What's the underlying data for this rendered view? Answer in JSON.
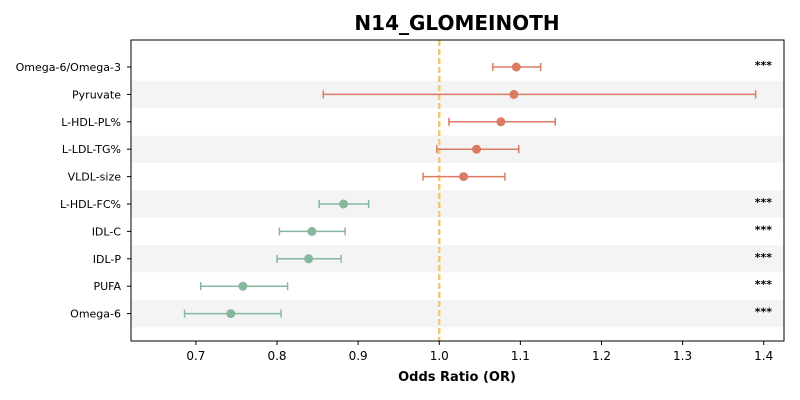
{
  "chart_data": {
    "type": "forest",
    "title": "N14_GLOMEINOTH",
    "xlabel": "Odds Ratio (OR)",
    "xlim": [
      0.62,
      1.425
    ],
    "xticks": [
      0.7,
      0.8,
      0.9,
      1.0,
      1.1,
      1.2,
      1.3,
      1.4
    ],
    "xtick_labels": [
      "0.7",
      "0.8",
      "0.9",
      "1.0",
      "1.1",
      "1.2",
      "1.3",
      "1.4"
    ],
    "reference_line": 1.0,
    "reference_color": "#f0c87a",
    "risk_color": "#db7b63",
    "protective_color": "#86b89e",
    "stripe_color": "#f4f4f4",
    "rows": [
      {
        "label": "Omega-6/Omega-3",
        "or": 1.095,
        "lo": 1.066,
        "hi": 1.125,
        "sig": "***"
      },
      {
        "label": "Pyruvate",
        "or": 1.092,
        "lo": 0.857,
        "hi": 1.39,
        "sig": ""
      },
      {
        "label": "L-HDL-PL%",
        "or": 1.076,
        "lo": 1.012,
        "hi": 1.143,
        "sig": ""
      },
      {
        "label": "L-LDL-TG%",
        "or": 1.046,
        "lo": 0.997,
        "hi": 1.098,
        "sig": ""
      },
      {
        "label": "VLDL-size",
        "or": 1.03,
        "lo": 0.98,
        "hi": 1.081,
        "sig": ""
      },
      {
        "label": "L-HDL-FC%",
        "or": 0.882,
        "lo": 0.852,
        "hi": 0.913,
        "sig": "***"
      },
      {
        "label": "IDL-C",
        "or": 0.843,
        "lo": 0.803,
        "hi": 0.884,
        "sig": "***"
      },
      {
        "label": "IDL-P",
        "or": 0.839,
        "lo": 0.8,
        "hi": 0.879,
        "sig": "***"
      },
      {
        "label": "PUFA",
        "or": 0.758,
        "lo": 0.706,
        "hi": 0.813,
        "sig": "***"
      },
      {
        "label": "Omega-6",
        "or": 0.743,
        "lo": 0.686,
        "hi": 0.805,
        "sig": "***"
      }
    ]
  }
}
